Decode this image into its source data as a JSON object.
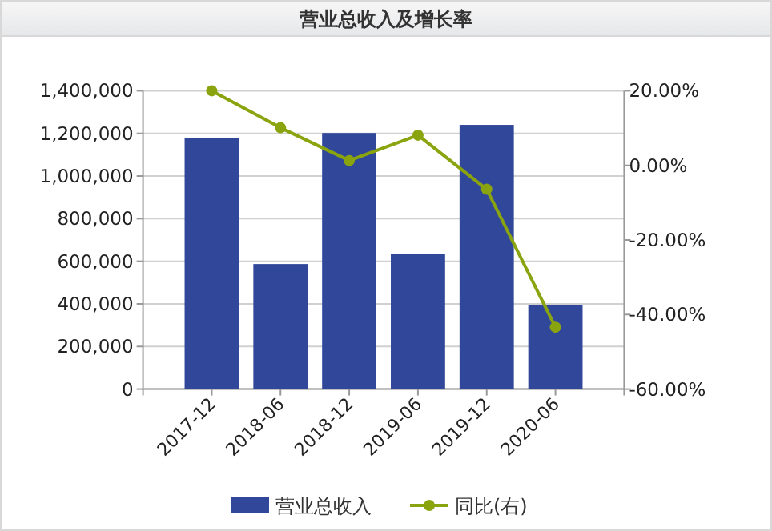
{
  "chart_data": {
    "type": "bar",
    "title": "营业总收入及增长率",
    "categories": [
      "2017-12",
      "2018-06",
      "2018-12",
      "2019-06",
      "2019-12",
      "2020-06"
    ],
    "series": [
      {
        "name": "营业总收入",
        "color": "#31479a",
        "values": [
          1180000,
          587000,
          1202000,
          635000,
          1240000,
          395000
        ]
      },
      {
        "name": "同比(右)",
        "type": "line",
        "axis": "y2",
        "color": "#8aa40f",
        "values": [
          20.0,
          10.1,
          1.3,
          8.1,
          -6.4,
          -43.4
        ]
      }
    ],
    "ylim": [
      0,
      1400000
    ],
    "yticks": [
      {
        "value": 0,
        "label": "0"
      },
      {
        "value": 200000,
        "label": "200,000"
      },
      {
        "value": 400000,
        "label": "400,000"
      },
      {
        "value": 600000,
        "label": "600,000"
      },
      {
        "value": 800000,
        "label": "800,000"
      },
      {
        "value": 1000000,
        "label": "1,000,000"
      },
      {
        "value": 1200000,
        "label": "1,200,000"
      },
      {
        "value": 1400000,
        "label": "1,400,000"
      }
    ],
    "y2lim": [
      -60,
      20
    ],
    "y2ticks": [
      {
        "value": -60,
        "label": "-60.00%"
      },
      {
        "value": -40,
        "label": "-40.00%"
      },
      {
        "value": -20,
        "label": "-20.00%"
      },
      {
        "value": 0,
        "label": "0.00%"
      },
      {
        "value": 20,
        "label": "20.00%"
      }
    ],
    "grid": "y",
    "legend": "bottom",
    "marker": "circle"
  }
}
